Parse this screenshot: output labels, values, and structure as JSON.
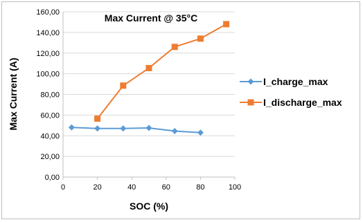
{
  "chart_data": {
    "type": "line",
    "title": "Max Current  @ 35°C",
    "xlabel": "SOC (%)",
    "ylabel": "Max Current (A)",
    "xlim": [
      0,
      100
    ],
    "ylim": [
      0,
      160
    ],
    "xticks": [
      0,
      20,
      40,
      60,
      80,
      100
    ],
    "xtick_labels": [
      "0",
      "20",
      "40",
      "60",
      "80",
      "100"
    ],
    "yticks": [
      0,
      20,
      40,
      60,
      80,
      100,
      120,
      140,
      160
    ],
    "ytick_labels": [
      "0,00",
      "20,00",
      "40,00",
      "60,00",
      "80,00",
      "100,00",
      "120,00",
      "140,00",
      "160,00"
    ],
    "grid": "horizontal",
    "legend_position": "right",
    "series": [
      {
        "name": "I_charge_max",
        "color": "#5b9bd5",
        "marker": "diamond",
        "x": [
          5,
          20,
          35,
          50,
          65,
          80
        ],
        "y": [
          48,
          47,
          47,
          47.5,
          44.5,
          43
        ]
      },
      {
        "name": "I_discharge_max",
        "color": "#ed7d31",
        "marker": "square",
        "x": [
          20,
          35,
          50,
          65,
          80,
          95
        ],
        "y": [
          56.5,
          88.5,
          105.5,
          126,
          134,
          148
        ]
      }
    ]
  }
}
